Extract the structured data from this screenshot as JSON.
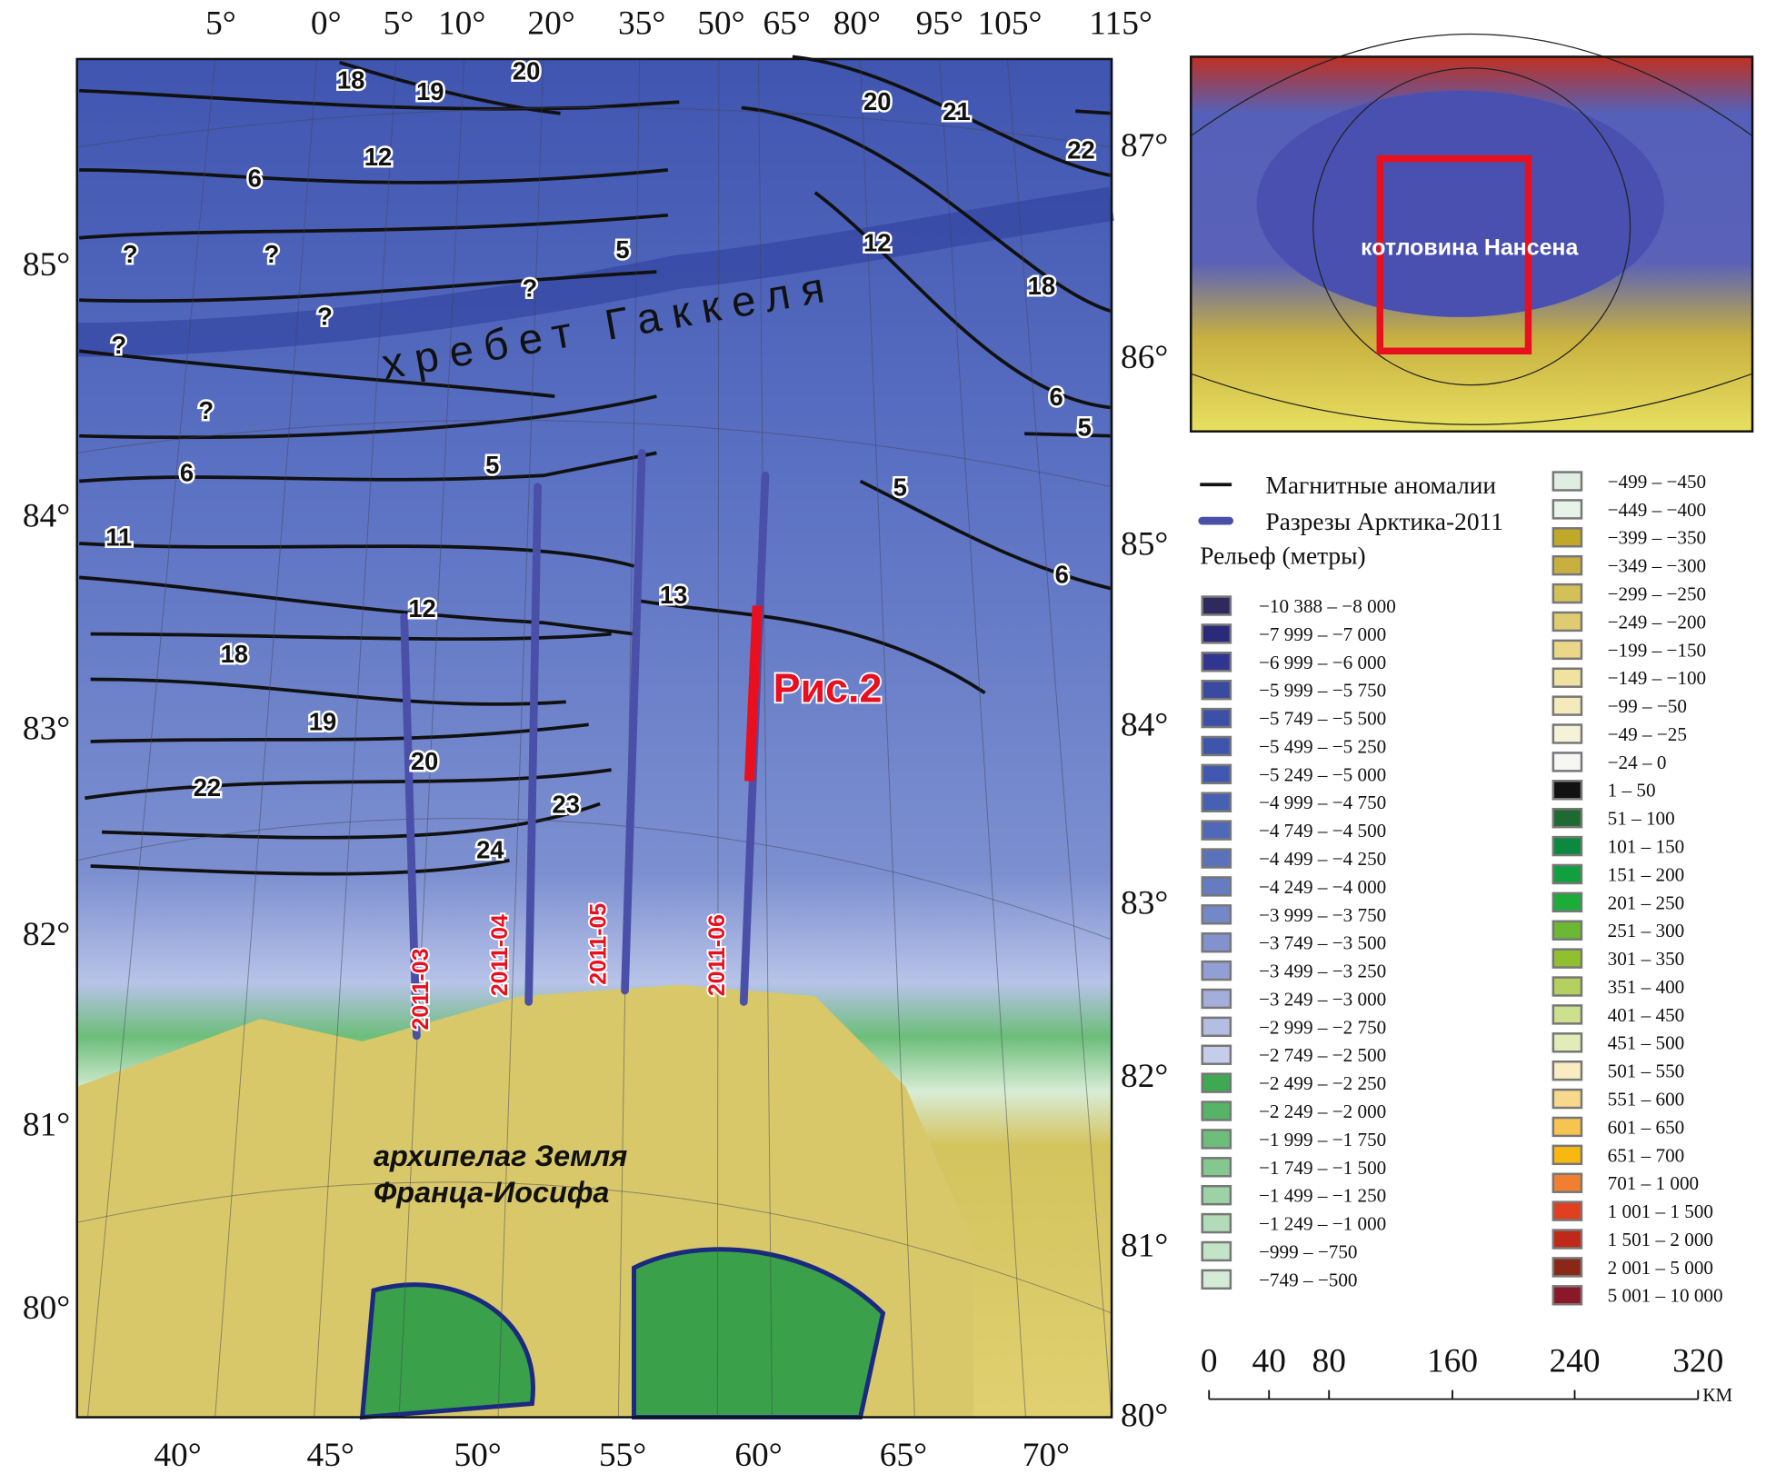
{
  "axes": {
    "top": [
      "5°",
      "0°",
      "5°",
      "10°",
      "20°",
      "35°",
      "50°",
      "65°",
      "80°",
      "95°",
      "105°",
      "115°"
    ],
    "bottom": [
      "40°",
      "45°",
      "50°",
      "55°",
      "60°",
      "65°",
      "70°"
    ],
    "left": [
      "85°",
      "84°",
      "83°",
      "82°",
      "81°",
      "80°"
    ],
    "right": [
      "87°",
      "86°",
      "85°",
      "84°",
      "83°",
      "82°",
      "81°",
      "80°"
    ]
  },
  "anomaly_labels": [
    "18",
    "19",
    "20",
    "12",
    "6",
    "?",
    "?",
    "?",
    "?",
    "?",
    "?",
    "5",
    "6",
    "11",
    "12",
    "18",
    "19",
    "20",
    "22",
    "23",
    "24",
    "5",
    "13",
    "20",
    "21",
    "22",
    "12",
    "18",
    "6",
    "5",
    "5",
    "6"
  ],
  "profiles": [
    "2011-03",
    "2011-04",
    "2011-05",
    "2011-06"
  ],
  "labels": {
    "ridge": "хребет Гаккеля",
    "archipelago_1": "архипелаг Земля",
    "archipelago_2": "Франца-Иосифа",
    "figure_ref": "Рис.2",
    "inset_basin": "котловина Нансена"
  },
  "colors": {
    "anomaly": "#111111",
    "profile": "#4a4fa8",
    "highlight": "#e8101e",
    "deep": "#5a6fc0",
    "shelf": "#bfc8ec",
    "land": "#d8c86a"
  },
  "legend": {
    "magnetic": "Магнитные аномалии",
    "profiles": "Разрезы Арктика-2011",
    "relief_title": "Рельеф (метры)",
    "left": [
      {
        "label": "−10 388 – −8 000",
        "color": "#2e2a5e"
      },
      {
        "label": "−7 999 – −7 000",
        "color": "#2b2a7a"
      },
      {
        "label": "−6 999 – −6 000",
        "color": "#303690"
      },
      {
        "label": "−5 999 – −5 750",
        "color": "#3a4aa0"
      },
      {
        "label": "−5 749 – −5 500",
        "color": "#3c50a8"
      },
      {
        "label": "−5 499 – −5 250",
        "color": "#3e55ac"
      },
      {
        "label": "−5 249 – −5 000",
        "color": "#4058b0"
      },
      {
        "label": "−4 999 – −4 750",
        "color": "#4660b4"
      },
      {
        "label": "−4 749 – −4 500",
        "color": "#5068b8"
      },
      {
        "label": "−4 499 – −4 250",
        "color": "#5a72bc"
      },
      {
        "label": "−4 249 – −4 000",
        "color": "#667cc2"
      },
      {
        "label": "−3 999 – −3 750",
        "color": "#7488c8"
      },
      {
        "label": "−3 749 – −3 500",
        "color": "#8292ce"
      },
      {
        "label": "−3 499 – −3 250",
        "color": "#929fd4"
      },
      {
        "label": "−3 249 – −3 000",
        "color": "#a3aeda"
      },
      {
        "label": "−2 999 – −2 750",
        "color": "#b4bde2"
      },
      {
        "label": "−2 749 – −2 500",
        "color": "#c6cdea"
      },
      {
        "label": "−2 499 – −2 250",
        "color": "#3fa852"
      },
      {
        "label": "−2 249 – −2 000",
        "color": "#55b466"
      },
      {
        "label": "−1 999 – −1 750",
        "color": "#6cbe7a"
      },
      {
        "label": "−1 749 – −1 500",
        "color": "#84c890"
      },
      {
        "label": "−1 499 – −1 250",
        "color": "#9cd2a4"
      },
      {
        "label": "−1 249 – −1 000",
        "color": "#b2dcb8"
      },
      {
        "label": "−999 – −750",
        "color": "#c4e4c8"
      },
      {
        "label": "−749 – −500",
        "color": "#d4ecd6"
      }
    ],
    "right": [
      {
        "label": "−499 – −450",
        "color": "#dfeee0"
      },
      {
        "label": "−449 – −400",
        "color": "#e8f3e8"
      },
      {
        "label": "−399 – −350",
        "color": "#c0a828"
      },
      {
        "label": "−349 – −300",
        "color": "#c8b040"
      },
      {
        "label": "−299 – −250",
        "color": "#d4c058"
      },
      {
        "label": "−249 – −200",
        "color": "#e0cc70"
      },
      {
        "label": "−199 – −150",
        "color": "#ead888"
      },
      {
        "label": "−149 – −100",
        "color": "#f0e2a0"
      },
      {
        "label": "−99 – −50",
        "color": "#f4eabc"
      },
      {
        "label": "−49 – −25",
        "color": "#f6f2d8"
      },
      {
        "label": "−24 – 0",
        "color": "#f6f6f2"
      },
      {
        "label": "1 – 50",
        "color": "#111111"
      },
      {
        "label": "51 – 100",
        "color": "#1e6a30"
      },
      {
        "label": "101 – 150",
        "color": "#0a8a3e"
      },
      {
        "label": "151 – 200",
        "color": "#10a040"
      },
      {
        "label": "201 – 250",
        "color": "#1cac38"
      },
      {
        "label": "251 – 300",
        "color": "#6ab834"
      },
      {
        "label": "301 – 350",
        "color": "#90c030"
      },
      {
        "label": "351 – 400",
        "color": "#b4d060"
      },
      {
        "label": "401 – 450",
        "color": "#cce090"
      },
      {
        "label": "451 – 500",
        "color": "#e2ecb8"
      },
      {
        "label": "501 – 550",
        "color": "#f8ecc0"
      },
      {
        "label": "551 – 600",
        "color": "#f8d88a"
      },
      {
        "label": "601 – 650",
        "color": "#f8c450"
      },
      {
        "label": "651 – 700",
        "color": "#f8b810"
      },
      {
        "label": "701 – 1 000",
        "color": "#f08030"
      },
      {
        "label": "1 001 – 1 500",
        "color": "#e04020"
      },
      {
        "label": "1 501 – 2 000",
        "color": "#c02818"
      },
      {
        "label": "2 001 – 5 000",
        "color": "#8a2818"
      },
      {
        "label": "5 001 – 10 000",
        "color": "#8a1828"
      }
    ]
  },
  "scale_bar": {
    "ticks": [
      "0",
      "40",
      "80",
      "160",
      "240",
      "320"
    ],
    "unit": "КМ"
  }
}
